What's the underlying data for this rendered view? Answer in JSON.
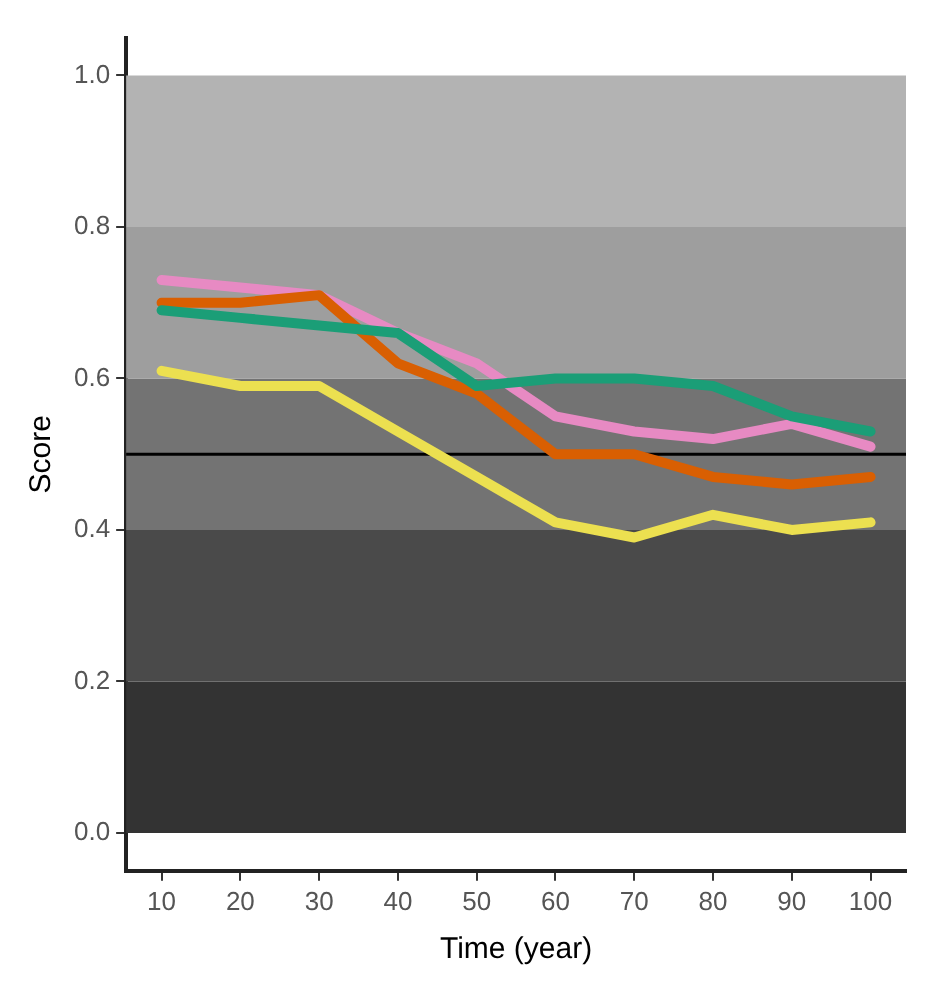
{
  "chart_data": {
    "type": "line",
    "xlabel": "Time (year)",
    "ylabel": "Score",
    "x": [
      10,
      20,
      30,
      40,
      50,
      60,
      70,
      80,
      90,
      100
    ],
    "series": [
      {
        "color": "#1b9e77",
        "values": [
          0.69,
          0.68,
          0.67,
          0.66,
          0.59,
          0.6,
          0.6,
          0.59,
          0.55,
          0.53
        ]
      },
      {
        "color": "#d95f02",
        "values": [
          0.7,
          0.7,
          0.71,
          0.62,
          0.58,
          0.5,
          0.5,
          0.47,
          0.46,
          0.47
        ]
      },
      {
        "color": "#e78ac3",
        "values": [
          0.73,
          0.72,
          0.71,
          0.66,
          0.62,
          0.55,
          0.53,
          0.52,
          0.54,
          0.51
        ]
      },
      {
        "color": "#ece050",
        "values": [
          0.61,
          0.59,
          0.59,
          0.53,
          0.47,
          0.41,
          0.39,
          0.42,
          0.4,
          0.41
        ]
      }
    ],
    "xlim": [
      5.5,
      104.5
    ],
    "xticks": [
      10,
      20,
      30,
      40,
      50,
      60,
      70,
      80,
      90,
      100
    ],
    "ylim": [
      -0.05,
      1.05
    ],
    "yticks": [
      {
        "value": 0,
        "label": "0.0"
      },
      0.2,
      0.4,
      0.6,
      0.8,
      {
        "value": 1,
        "label": "1.0"
      }
    ],
    "bands": [
      {
        "axis": "y",
        "from": 0,
        "to": 0.2,
        "color": "#333333"
      },
      {
        "axis": "y",
        "from": 0.2,
        "to": 0.4,
        "color": "#4a4a4a"
      },
      {
        "axis": "y",
        "from": 0.4,
        "to": 0.6,
        "color": "#737373"
      },
      {
        "axis": "y",
        "from": 0.6,
        "to": 0.8,
        "color": "#9e9e9e"
      },
      {
        "axis": "y",
        "from": 0.8,
        "to": 1,
        "color": "#b3b3b3"
      }
    ],
    "ref_lines": [
      {
        "axis": "y",
        "value": 0.5,
        "color": "#000000"
      }
    ],
    "grid": false,
    "legend": false,
    "marker": "none",
    "line_style": "solid"
  }
}
